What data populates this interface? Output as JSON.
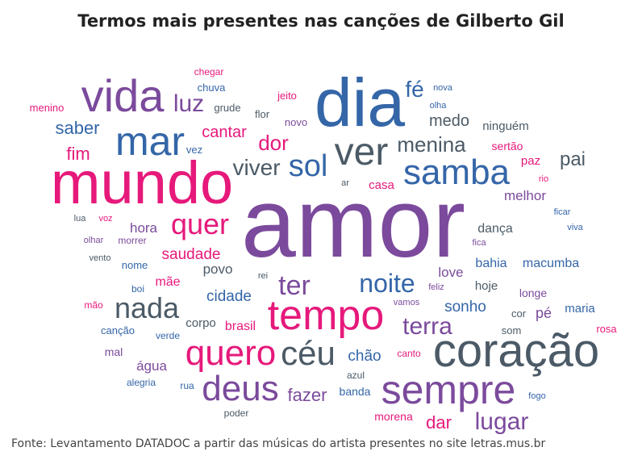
{
  "title": "Termos mais presentes nas canções de Gilberto Gil",
  "source": "Fonte: Levantamento DATADOC a partir das músicas do artista presentes no site letras.mus.br",
  "chart_data": {
    "type": "wordcloud",
    "title": "Termos mais presentes nas canções de Gilberto Gil",
    "colors": {
      "purple": "#7B4A9C",
      "pink": "#E6197B",
      "blue": "#3466A8",
      "gray": "#4B5A66"
    },
    "words": [
      {
        "text": "amor",
        "weight": 100,
        "color": "purple"
      },
      {
        "text": "coração",
        "weight": 55,
        "color": "gray"
      },
      {
        "text": "dia",
        "weight": 72,
        "color": "blue"
      },
      {
        "text": "mundo",
        "weight": 70,
        "color": "pink"
      },
      {
        "text": "tempo",
        "weight": 48,
        "color": "pink"
      },
      {
        "text": "sempre",
        "weight": 46,
        "color": "purple"
      },
      {
        "text": "vida",
        "weight": 50,
        "color": "purple"
      },
      {
        "text": "samba",
        "weight": 40,
        "color": "blue"
      },
      {
        "text": "mar",
        "weight": 46,
        "color": "blue"
      },
      {
        "text": "ver",
        "weight": 42,
        "color": "gray"
      },
      {
        "text": "quero",
        "weight": 40,
        "color": "pink"
      },
      {
        "text": "deus",
        "weight": 38,
        "color": "purple"
      },
      {
        "text": "céu",
        "weight": 38,
        "color": "gray"
      },
      {
        "text": "nada",
        "weight": 32,
        "color": "gray"
      },
      {
        "text": "sol",
        "weight": 32,
        "color": "blue"
      },
      {
        "text": "quer",
        "weight": 30,
        "color": "pink"
      },
      {
        "text": "noite",
        "weight": 28,
        "color": "blue"
      },
      {
        "text": "ter",
        "weight": 30,
        "color": "purple"
      },
      {
        "text": "viver",
        "weight": 26,
        "color": "gray"
      },
      {
        "text": "terra",
        "weight": 26,
        "color": "purple"
      },
      {
        "text": "lugar",
        "weight": 24,
        "color": "purple"
      },
      {
        "text": "luz",
        "weight": 26,
        "color": "purple"
      },
      {
        "text": "fé",
        "weight": 24,
        "color": "blue"
      },
      {
        "text": "menina",
        "weight": 22,
        "color": "gray"
      },
      {
        "text": "saber",
        "weight": 20,
        "color": "blue"
      },
      {
        "text": "dor",
        "weight": 22,
        "color": "pink"
      },
      {
        "text": "pai",
        "weight": 20,
        "color": "gray"
      },
      {
        "text": "fazer",
        "weight": 20,
        "color": "purple"
      },
      {
        "text": "dar",
        "weight": 20,
        "color": "pink"
      },
      {
        "text": "fim",
        "weight": 20,
        "color": "pink"
      },
      {
        "text": "cantar",
        "weight": 18,
        "color": "pink"
      },
      {
        "text": "medo",
        "weight": 18,
        "color": "gray"
      },
      {
        "text": "saudade",
        "weight": 18,
        "color": "pink"
      },
      {
        "text": "sonho",
        "weight": 18,
        "color": "blue"
      },
      {
        "text": "chão",
        "weight": 18,
        "color": "blue"
      },
      {
        "text": "cidade",
        "weight": 18,
        "color": "blue"
      },
      {
        "text": "melhor",
        "weight": 16,
        "color": "purple"
      },
      {
        "text": "hora",
        "weight": 16,
        "color": "purple"
      },
      {
        "text": "água",
        "weight": 16,
        "color": "purple"
      },
      {
        "text": "povo",
        "weight": 16,
        "color": "gray"
      },
      {
        "text": "love",
        "weight": 16,
        "color": "purple"
      },
      {
        "text": "dança",
        "weight": 15,
        "color": "gray"
      },
      {
        "text": "bahia",
        "weight": 15,
        "color": "blue"
      },
      {
        "text": "macumba",
        "weight": 15,
        "color": "blue"
      },
      {
        "text": "mãe",
        "weight": 15,
        "color": "pink"
      },
      {
        "text": "brasil",
        "weight": 15,
        "color": "pink"
      },
      {
        "text": "hoje",
        "weight": 14,
        "color": "gray"
      },
      {
        "text": "maria",
        "weight": 14,
        "color": "blue"
      },
      {
        "text": "pé",
        "weight": 15,
        "color": "purple"
      },
      {
        "text": "ninguém",
        "weight": 14,
        "color": "gray"
      },
      {
        "text": "casa",
        "weight": 14,
        "color": "pink"
      },
      {
        "text": "paz",
        "weight": 14,
        "color": "pink"
      },
      {
        "text": "corpo",
        "weight": 14,
        "color": "gray"
      },
      {
        "text": "longe",
        "weight": 13,
        "color": "purple"
      },
      {
        "text": "mal",
        "weight": 13,
        "color": "purple"
      },
      {
        "text": "banda",
        "weight": 13,
        "color": "blue"
      },
      {
        "text": "morena",
        "weight": 13,
        "color": "pink"
      },
      {
        "text": "sertão",
        "weight": 13,
        "color": "pink"
      },
      {
        "text": "chuva",
        "weight": 12,
        "color": "blue"
      },
      {
        "text": "jeito",
        "weight": 12,
        "color": "pink"
      },
      {
        "text": "grude",
        "weight": 12,
        "color": "gray"
      },
      {
        "text": "flor",
        "weight": 12,
        "color": "gray"
      },
      {
        "text": "novo",
        "weight": 12,
        "color": "purple"
      },
      {
        "text": "vez",
        "weight": 12,
        "color": "blue"
      },
      {
        "text": "nome",
        "weight": 12,
        "color": "blue"
      },
      {
        "text": "morrer",
        "weight": 12,
        "color": "purple"
      },
      {
        "text": "canção",
        "weight": 12,
        "color": "blue"
      },
      {
        "text": "som",
        "weight": 12,
        "color": "gray"
      },
      {
        "text": "cor",
        "weight": 12,
        "color": "gray"
      },
      {
        "text": "rosa",
        "weight": 12,
        "color": "pink"
      },
      {
        "text": "menino",
        "weight": 12,
        "color": "pink"
      },
      {
        "text": "chegar",
        "weight": 11,
        "color": "pink"
      },
      {
        "text": "canto",
        "weight": 11,
        "color": "pink"
      },
      {
        "text": "azul",
        "weight": 11,
        "color": "gray"
      },
      {
        "text": "rua",
        "weight": 11,
        "color": "blue"
      },
      {
        "text": "poder",
        "weight": 11,
        "color": "gray"
      },
      {
        "text": "verde",
        "weight": 11,
        "color": "blue"
      },
      {
        "text": "alegria",
        "weight": 11,
        "color": "blue"
      },
      {
        "text": "mão",
        "weight": 11,
        "color": "pink"
      },
      {
        "text": "boi",
        "weight": 11,
        "color": "blue"
      },
      {
        "text": "olhar",
        "weight": 10,
        "color": "purple"
      },
      {
        "text": "vento",
        "weight": 10,
        "color": "gray"
      },
      {
        "text": "lua",
        "weight": 10,
        "color": "gray"
      },
      {
        "text": "voz",
        "weight": 10,
        "color": "pink"
      },
      {
        "text": "nova",
        "weight": 10,
        "color": "blue"
      },
      {
        "text": "olha",
        "weight": 10,
        "color": "blue"
      },
      {
        "text": "rio",
        "weight": 10,
        "color": "pink"
      },
      {
        "text": "ficar",
        "weight": 10,
        "color": "blue"
      },
      {
        "text": "viva",
        "weight": 10,
        "color": "blue"
      },
      {
        "text": "fica",
        "weight": 10,
        "color": "purple"
      },
      {
        "text": "feliz",
        "weight": 10,
        "color": "purple"
      },
      {
        "text": "vamos",
        "weight": 10,
        "color": "purple"
      },
      {
        "text": "fogo",
        "weight": 10,
        "color": "blue"
      },
      {
        "text": "rei",
        "weight": 10,
        "color": "gray"
      },
      {
        "text": "ar",
        "weight": 10,
        "color": "gray"
      }
    ]
  }
}
